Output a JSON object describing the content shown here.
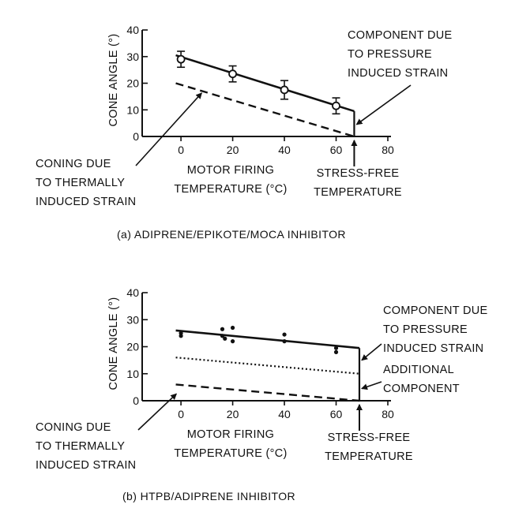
{
  "chart_data": [
    {
      "type": "line",
      "caption": "(a)  ADIPRENE/EPIKOTE/MOCA INHIBITOR",
      "ylabel": "CONE ANGLE (°)",
      "xlabel_line1": "MOTOR FIRING",
      "xlabel_line2": "TEMPERATURE (°C)",
      "xlim": [
        -15,
        80
      ],
      "ylim": [
        0,
        40
      ],
      "xticks": [
        0,
        20,
        40,
        60,
        80
      ],
      "yticks": [
        0,
        10,
        20,
        30,
        40
      ],
      "series": [
        {
          "style": "solid",
          "x": [
            -2,
            67
          ],
          "y": [
            30.5,
            9.5
          ]
        },
        {
          "style": "dashed",
          "x": [
            -2,
            67
          ],
          "y": [
            20,
            0
          ]
        }
      ],
      "points": {
        "marker": "open-circle-errorbar",
        "x": [
          0,
          20,
          40,
          60
        ],
        "y": [
          29,
          23.5,
          17.5,
          11.5
        ],
        "err": [
          3,
          3,
          3.5,
          3
        ]
      },
      "stress_free_x": 67,
      "annotations": {
        "pressure": [
          "COMPONENT DUE",
          "TO PRESSURE",
          "INDUCED STRAIN"
        ],
        "thermal": [
          "CONING DUE",
          "TO THERMALLY",
          "INDUCED STRAIN"
        ],
        "stress_free": [
          "STRESS-FREE",
          "TEMPERATURE"
        ]
      }
    },
    {
      "type": "line",
      "caption": "(b)  HTPB/ADIPRENE INHIBITOR",
      "ylabel": "CONE ANGLE (°)",
      "xlabel_line1": "MOTOR FIRING",
      "xlabel_line2": "TEMPERATURE (°C)",
      "xlim": [
        -15,
        80
      ],
      "ylim": [
        0,
        40
      ],
      "xticks": [
        0,
        20,
        40,
        60,
        80
      ],
      "yticks": [
        0,
        10,
        20,
        30,
        40
      ],
      "series": [
        {
          "style": "solid",
          "x": [
            -2,
            69
          ],
          "y": [
            26,
            19.5
          ]
        },
        {
          "style": "dotted",
          "x": [
            -2,
            69
          ],
          "y": [
            16,
            10
          ]
        },
        {
          "style": "dashed",
          "x": [
            -2,
            69
          ],
          "y": [
            6,
            0
          ]
        }
      ],
      "points": {
        "marker": "filled-dot",
        "x": [
          0,
          0,
          16,
          16,
          17,
          20,
          20,
          40,
          40,
          60,
          60
        ],
        "y": [
          25,
          24,
          26.5,
          24,
          23,
          27,
          22,
          24.5,
          22,
          19.5,
          18
        ]
      },
      "stress_free_x": 69,
      "annotations": {
        "pressure": [
          "COMPONENT DUE",
          "TO PRESSURE",
          "INDUCED STRAIN"
        ],
        "additional": [
          "ADDITIONAL",
          "COMPONENT"
        ],
        "thermal": [
          "CONING DUE",
          "TO THERMALLY",
          "INDUCED STRAIN"
        ],
        "stress_free": [
          "STRESS-FREE",
          "TEMPERATURE"
        ]
      }
    }
  ]
}
